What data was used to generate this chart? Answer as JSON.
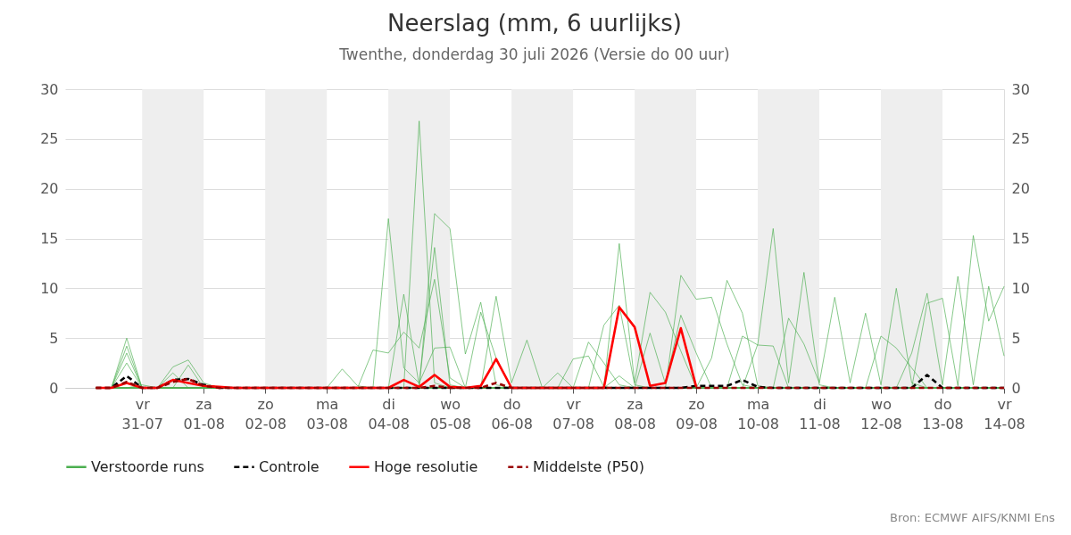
{
  "chart_data": {
    "type": "line",
    "title": "Neerslag (mm, 6 uurlijks)",
    "subtitle": "Twenthe, donderdag 30 juli 2026 (Versie do 00 uur)",
    "annotations": [
      "Bron: ECMWF AIFS/KNMI Ens"
    ],
    "x": [
      "2026-07-30T06:00",
      "2026-07-30T12:00",
      "2026-07-30T18:00",
      "2026-07-31T00:00",
      "2026-07-31T06:00",
      "2026-07-31T12:00",
      "2026-07-31T18:00",
      "2026-08-01T00:00",
      "2026-08-01T06:00",
      "2026-08-01T12:00",
      "2026-08-01T18:00",
      "2026-08-02T00:00",
      "2026-08-02T06:00",
      "2026-08-02T12:00",
      "2026-08-02T18:00",
      "2026-08-03T00:00",
      "2026-08-03T06:00",
      "2026-08-03T12:00",
      "2026-08-03T18:00",
      "2026-08-04T00:00",
      "2026-08-04T06:00",
      "2026-08-04T12:00",
      "2026-08-04T18:00",
      "2026-08-05T00:00",
      "2026-08-05T06:00",
      "2026-08-05T12:00",
      "2026-08-05T18:00",
      "2026-08-06T00:00",
      "2026-08-06T06:00",
      "2026-08-06T12:00",
      "2026-08-06T18:00",
      "2026-08-07T00:00",
      "2026-08-07T06:00",
      "2026-08-07T12:00",
      "2026-08-07T18:00",
      "2026-08-08T00:00",
      "2026-08-08T06:00",
      "2026-08-08T12:00",
      "2026-08-08T18:00",
      "2026-08-09T00:00",
      "2026-08-09T06:00",
      "2026-08-09T12:00",
      "2026-08-09T18:00",
      "2026-08-10T00:00",
      "2026-08-10T06:00",
      "2026-08-10T12:00",
      "2026-08-10T18:00",
      "2026-08-11T00:00",
      "2026-08-11T06:00",
      "2026-08-11T12:00",
      "2026-08-11T18:00",
      "2026-08-12T00:00",
      "2026-08-12T06:00",
      "2026-08-12T12:00",
      "2026-08-12T18:00",
      "2026-08-13T00:00",
      "2026-08-13T06:00",
      "2026-08-13T12:00",
      "2026-08-13T18:00",
      "2026-08-14T00:00"
    ],
    "xlim": [
      "2026-07-29T18:00",
      "2026-08-14T00:00"
    ],
    "xticks": [
      {
        "value": "2026-07-31T00:00",
        "label": "vr\n31-07"
      },
      {
        "value": "2026-08-01T00:00",
        "label": "za\n01-08"
      },
      {
        "value": "2026-08-02T00:00",
        "label": "zo\n02-08"
      },
      {
        "value": "2026-08-03T00:00",
        "label": "ma\n03-08"
      },
      {
        "value": "2026-08-04T00:00",
        "label": "di\n04-08"
      },
      {
        "value": "2026-08-05T00:00",
        "label": "wo\n05-08"
      },
      {
        "value": "2026-08-06T00:00",
        "label": "do\n06-08"
      },
      {
        "value": "2026-08-07T00:00",
        "label": "vr\n07-08"
      },
      {
        "value": "2026-08-08T00:00",
        "label": "za\n08-08"
      },
      {
        "value": "2026-08-09T00:00",
        "label": "zo\n09-08"
      },
      {
        "value": "2026-08-10T00:00",
        "label": "ma\n10-08"
      },
      {
        "value": "2026-08-11T00:00",
        "label": "di\n11-08"
      },
      {
        "value": "2026-08-12T00:00",
        "label": "wo\n12-08"
      },
      {
        "value": "2026-08-13T00:00",
        "label": "do\n13-08"
      },
      {
        "value": "2026-08-14T00:00",
        "label": "vr\n14-08"
      }
    ],
    "ylim": [
      0,
      30
    ],
    "yticks": [
      0,
      5,
      10,
      15,
      20,
      25,
      30
    ],
    "y2lim": [
      0,
      30
    ],
    "y2ticks": [
      0,
      5,
      10,
      15,
      20,
      25,
      30
    ],
    "grid": "y",
    "legend": "bottom",
    "bands": [
      {
        "axis": "x",
        "from": "2026-07-31T00:00",
        "to": "2026-08-01T00:00",
        "color": "#eeeeee"
      },
      {
        "axis": "x",
        "from": "2026-08-02T00:00",
        "to": "2026-08-03T00:00",
        "color": "#eeeeee"
      },
      {
        "axis": "x",
        "from": "2026-08-04T00:00",
        "to": "2026-08-05T00:00",
        "color": "#eeeeee"
      },
      {
        "axis": "x",
        "from": "2026-08-06T00:00",
        "to": "2026-08-07T00:00",
        "color": "#eeeeee"
      },
      {
        "axis": "x",
        "from": "2026-08-08T00:00",
        "to": "2026-08-09T00:00",
        "color": "#eeeeee"
      },
      {
        "axis": "x",
        "from": "2026-08-10T00:00",
        "to": "2026-08-11T00:00",
        "color": "#eeeeee"
      },
      {
        "axis": "x",
        "from": "2026-08-12T00:00",
        "to": "2026-08-13T00:00",
        "color": "#eeeeee"
      }
    ],
    "series": [
      {
        "name": "Verstoorde runs",
        "color": "#4caf50",
        "values": [
          0,
          0,
          5.0,
          0,
          0,
          2.1,
          2.8,
          0.5,
          0,
          0,
          0,
          0,
          0,
          0,
          0,
          0,
          0,
          0,
          0,
          17.0,
          2.0,
          0.5,
          4.0,
          4.1,
          0,
          0,
          0,
          0,
          0,
          0,
          1.5,
          0,
          0,
          0,
          1.2,
          0,
          0,
          0,
          0,
          0,
          0,
          0,
          0,
          0,
          0,
          0,
          0,
          0,
          0,
          0,
          0,
          0,
          0,
          0,
          0,
          0,
          0,
          0,
          0,
          0
        ]
      },
      {
        "color": "#4caf50",
        "values": [
          0,
          0,
          3.5,
          0,
          0,
          0,
          2.3,
          0,
          0,
          0,
          0,
          0,
          0,
          0,
          0,
          0,
          1.9,
          0.2,
          0,
          0,
          0,
          26.8,
          0.5,
          0,
          0,
          0,
          9.2,
          0.5,
          4.8,
          0,
          0,
          0,
          0,
          0,
          0,
          0,
          0,
          0,
          0,
          0,
          0,
          0,
          0,
          0,
          0,
          0,
          0,
          0,
          0,
          0,
          0,
          0,
          0,
          0,
          0,
          0,
          0,
          0,
          0,
          0
        ]
      },
      {
        "color": "#4caf50",
        "values": [
          0,
          0,
          4.2,
          0,
          0,
          1.5,
          0,
          0,
          0,
          0,
          0,
          0,
          0,
          0,
          0,
          0,
          0,
          0,
          0,
          0,
          0,
          0,
          17.5,
          16.0,
          3.4,
          8.6,
          0.3,
          0,
          0,
          0,
          0,
          0,
          0,
          0,
          0,
          0,
          0,
          0,
          0,
          0,
          0,
          0,
          0,
          0,
          0,
          0,
          0,
          0,
          0,
          0,
          0,
          0,
          0,
          0,
          0,
          0,
          0,
          0,
          0,
          0
        ]
      },
      {
        "color": "#4caf50",
        "values": [
          0,
          0,
          2.5,
          0,
          0,
          0,
          0,
          0,
          0,
          0,
          0,
          0,
          0,
          0,
          0,
          0,
          0,
          0,
          0,
          0,
          9.4,
          0.3,
          14.1,
          0.3,
          0,
          7.6,
          3.0,
          0,
          0,
          0,
          0,
          0,
          0,
          0,
          0,
          0,
          0,
          0,
          0,
          0,
          0,
          0,
          0,
          0,
          0,
          0,
          0,
          0,
          0,
          0,
          0,
          0,
          0,
          0,
          0,
          0,
          0,
          0,
          0,
          0
        ]
      },
      {
        "color": "#4caf50",
        "values": [
          0,
          0,
          0,
          0.3,
          0,
          0,
          0,
          0,
          0,
          0,
          0,
          0,
          0,
          0,
          0,
          0,
          0,
          0,
          3.8,
          3.5,
          5.6,
          4.0,
          10.9,
          1.0,
          0,
          0,
          0,
          0,
          0,
          0,
          0,
          0,
          0,
          0,
          14.5,
          0.5,
          9.6,
          7.6,
          3.7,
          0,
          0,
          0,
          0,
          0,
          0,
          0,
          0,
          0,
          0,
          0,
          0,
          0,
          0,
          0,
          0,
          0,
          0,
          0,
          0,
          0
        ]
      },
      {
        "color": "#4caf50",
        "values": [
          0,
          0,
          0,
          0,
          0,
          0,
          0,
          0,
          0,
          0,
          0,
          0,
          0,
          0,
          0,
          0,
          0,
          0,
          0,
          0,
          0,
          0,
          0,
          0,
          0,
          0,
          0,
          0,
          0,
          0,
          0,
          2.9,
          3.2,
          0.1,
          0,
          0,
          0,
          0,
          11.3,
          8.9,
          9.1,
          4.4,
          0.3,
          0,
          0,
          0,
          0,
          0,
          0,
          0,
          0,
          0,
          0,
          0,
          0,
          0,
          0,
          0,
          0,
          0
        ]
      },
      {
        "color": "#4caf50",
        "values": [
          0,
          0,
          0,
          0,
          0,
          0,
          0,
          0,
          0,
          0,
          0,
          0,
          0,
          0,
          0,
          0,
          0,
          0,
          0,
          0,
          0,
          0,
          0,
          0,
          0,
          0,
          0,
          0,
          0,
          0,
          0,
          0,
          4.6,
          2.5,
          0.3,
          0,
          0,
          0,
          0,
          0,
          3.0,
          10.8,
          7.5,
          0.2,
          0,
          0,
          0,
          0,
          0,
          0,
          0,
          0,
          0,
          0,
          0,
          0,
          0,
          0,
          0,
          0
        ]
      },
      {
        "color": "#4caf50",
        "values": [
          0,
          0,
          0,
          0,
          0,
          0,
          0,
          0,
          0,
          0,
          0,
          0,
          0,
          0,
          0,
          0,
          0,
          0,
          0,
          0,
          0,
          0,
          0,
          0,
          0,
          0,
          0,
          0,
          0,
          0,
          0,
          0,
          0,
          6.3,
          8.3,
          0.3,
          0,
          0,
          0,
          0,
          0,
          0,
          0,
          4.4,
          16.0,
          0.5,
          11.6,
          0.3,
          0,
          0,
          0,
          0,
          0,
          0,
          0,
          0,
          0,
          0,
          0,
          0
        ]
      },
      {
        "color": "#4caf50",
        "values": [
          0,
          0,
          0,
          0,
          0,
          0,
          0,
          0,
          0,
          0,
          0,
          0,
          0,
          0,
          0,
          0,
          0,
          0,
          0,
          0,
          0,
          0,
          0,
          0,
          0,
          0,
          0,
          0,
          0,
          0,
          0,
          0,
          0,
          0,
          0,
          0,
          0,
          0,
          0,
          0,
          0,
          0,
          0,
          0,
          0,
          7.0,
          4.4,
          0.5,
          9.1,
          0.5,
          7.5,
          0.3,
          10.0,
          0.5,
          0,
          0,
          0,
          0,
          0,
          0
        ]
      },
      {
        "color": "#4caf50",
        "values": [
          0,
          0,
          0,
          0,
          0,
          0,
          0,
          0,
          0,
          0,
          0,
          0,
          0,
          0,
          0,
          0,
          0,
          0,
          0,
          0,
          0,
          0,
          0,
          0,
          0,
          0,
          0,
          0,
          0,
          0,
          0,
          0,
          0,
          0,
          0,
          0,
          0,
          0,
          0,
          0,
          0,
          0,
          0,
          0,
          0,
          0,
          0,
          0,
          0,
          0,
          0,
          0,
          0,
          3.5,
          9.5,
          0.3,
          11.2,
          0.3,
          10.2,
          3.2
        ]
      },
      {
        "color": "#4caf50",
        "values": [
          0,
          0,
          0,
          0,
          0,
          0,
          0,
          0,
          0,
          0,
          0,
          0,
          0,
          0,
          0,
          0,
          0,
          0,
          0,
          0,
          0,
          0,
          0,
          0,
          0,
          0,
          0,
          0,
          0,
          0,
          0,
          0,
          0,
          0,
          0,
          0,
          0,
          0,
          0,
          0,
          0,
          0,
          0,
          0,
          0,
          0,
          0,
          0,
          0,
          0,
          0,
          0,
          0,
          0,
          8.5,
          9.0,
          0.2,
          15.3,
          6.7,
          10.2
        ]
      },
      {
        "color": "#4caf50",
        "values": [
          0,
          0,
          0,
          0,
          0,
          0,
          0,
          0,
          0,
          0,
          0,
          0,
          0,
          0,
          0,
          0,
          0,
          0,
          0,
          0,
          0,
          0,
          0,
          0,
          0,
          0,
          0,
          0,
          0,
          0,
          0,
          0,
          0,
          0,
          0,
          0,
          5.5,
          0.4,
          7.3,
          3.5,
          0,
          0,
          5.2,
          4.3,
          4.2,
          0,
          0,
          0,
          0,
          0,
          0,
          5.2,
          4.0,
          2.0,
          0,
          0,
          0,
          0,
          0,
          0
        ]
      },
      {
        "name": "Controle",
        "color": "#000000",
        "line_style": "dashed",
        "values": [
          0,
          0,
          1.2,
          0,
          0,
          0.8,
          0.9,
          0.3,
          0,
          0,
          0,
          0,
          0,
          0,
          0,
          0,
          0,
          0,
          0,
          0,
          0,
          0,
          0,
          0,
          0,
          0,
          0,
          0,
          0,
          0,
          0,
          0,
          0,
          0,
          0,
          0,
          0,
          0,
          0,
          0.2,
          0.2,
          0.2,
          0.8,
          0.1,
          0,
          0,
          0,
          0,
          0,
          0,
          0,
          0,
          0,
          0,
          1.3,
          0,
          0,
          0,
          0,
          0
        ]
      },
      {
        "name": "Hoge resolutie",
        "color": "#ff0000",
        "line_style": "solid",
        "values": [
          0,
          0,
          0.5,
          0,
          0,
          0.8,
          0.5,
          0.2,
          0.1,
          0,
          0,
          0,
          0,
          0,
          0,
          0,
          0,
          0,
          0,
          0,
          0.8,
          0.1,
          1.3,
          0.1,
          0,
          0.2,
          2.9,
          0,
          0,
          0,
          0,
          0,
          0,
          0,
          8.1,
          6.1,
          0.2,
          0.5,
          6.0,
          0.1,
          null,
          null,
          null,
          null,
          null,
          null,
          null,
          null,
          null,
          null,
          null,
          null,
          null,
          null,
          null,
          null,
          null,
          null,
          null,
          null
        ]
      },
      {
        "name": "Middelste (P50)",
        "color": "#990000",
        "line_style": "dashed",
        "values": [
          0,
          0,
          0.6,
          0,
          0,
          0.6,
          0.9,
          0.2,
          0,
          0,
          0,
          0,
          0,
          0,
          0,
          0,
          0,
          0,
          0,
          0,
          0,
          0,
          0.2,
          0,
          0,
          0,
          0.5,
          0,
          0,
          0,
          0,
          0,
          0,
          0,
          0,
          0,
          0,
          0,
          0,
          0,
          0,
          0,
          0,
          0,
          0,
          0,
          0,
          0,
          0,
          0,
          0,
          0,
          0,
          0,
          0,
          0,
          0,
          0,
          0,
          0
        ]
      }
    ]
  }
}
